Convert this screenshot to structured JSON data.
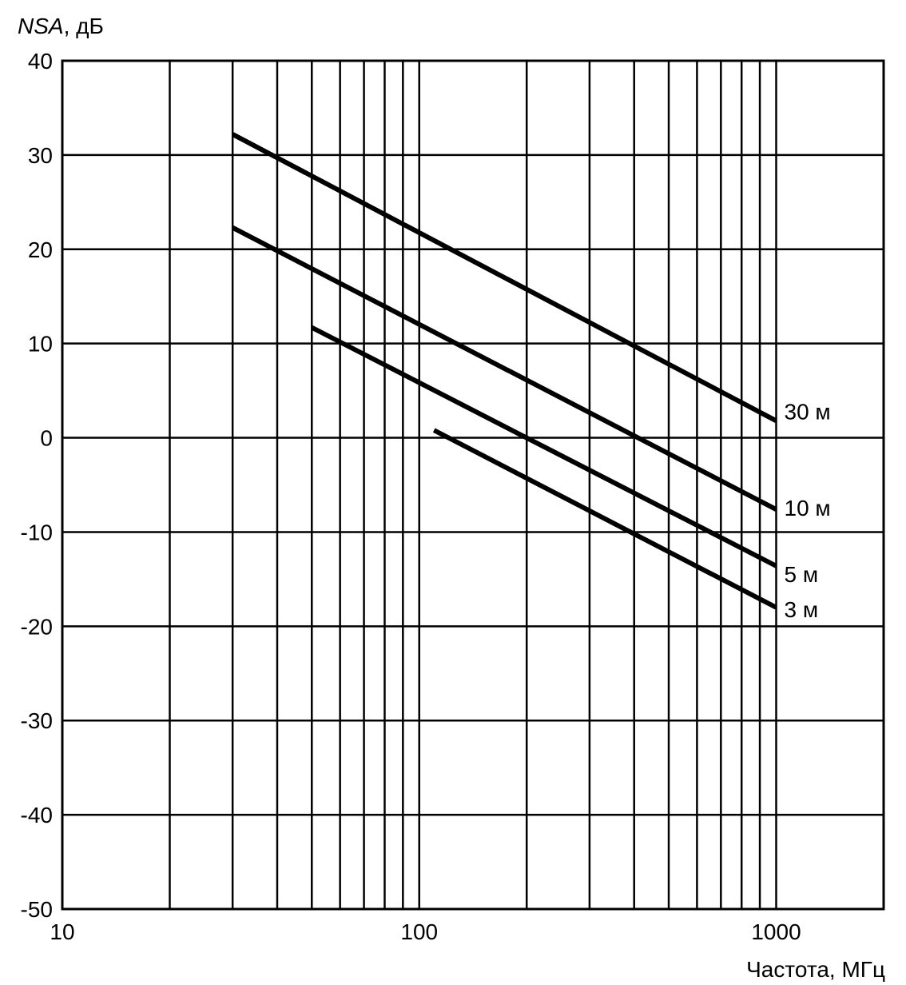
{
  "chart_data": {
    "type": "line",
    "title": "",
    "ylabel_italic": "NSA",
    "ylabel_unit": ", дБ",
    "xlabel": "Частота, МГц",
    "x_scale": "log",
    "xlim": [
      10,
      2000
    ],
    "ylim": [
      -50,
      40
    ],
    "x_ticks": [
      10,
      100,
      1000
    ],
    "x_tick_labels": [
      "10",
      "100",
      "1000"
    ],
    "y_ticks": [
      40,
      30,
      20,
      10,
      0,
      -10,
      -20,
      -30,
      -40,
      -50
    ],
    "y_tick_labels": [
      "40",
      "30",
      "20",
      "10",
      "0",
      "-10",
      "-20",
      "-30",
      "-40",
      "-50"
    ],
    "x_grid": [
      20,
      30,
      40,
      50,
      60,
      70,
      80,
      90,
      100,
      200,
      300,
      400,
      500,
      600,
      700,
      800,
      900,
      1000
    ],
    "grid": true,
    "legend": "labels at line ends",
    "series": [
      {
        "name": "30 м",
        "x": [
          30,
          1000
        ],
        "y": [
          32.2,
          1.8
        ]
      },
      {
        "name": "10 м",
        "x": [
          30,
          1000
        ],
        "y": [
          22.3,
          -7.6
        ]
      },
      {
        "name": "5 м",
        "x": [
          50,
          1000
        ],
        "y": [
          11.7,
          -13.6
        ]
      },
      {
        "name": "3 м",
        "x": [
          110,
          1000
        ],
        "y": [
          0.8,
          -18.0
        ]
      }
    ]
  }
}
